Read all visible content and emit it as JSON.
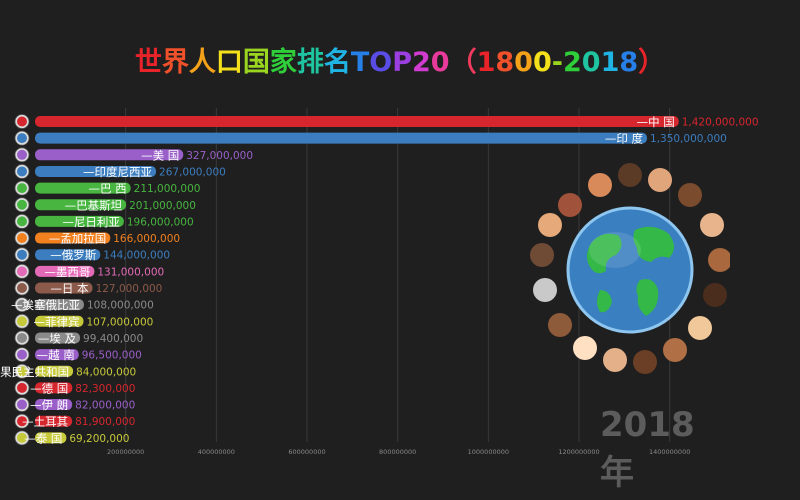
{
  "title": "世界人口国家排名TOP20（1800-2018）",
  "title_colors": [
    "#e8232a",
    "#f0502a",
    "#f5a21b",
    "#f5e11b",
    "#9ad51f",
    "#2fcf3a",
    "#1fc5a0",
    "#1fb4e3",
    "#2780e8",
    "#5a4de6",
    "#9b3fe0",
    "#d03bd0",
    "#e83a9a",
    "#ef3a5d",
    "#e8232a",
    "#f0502a",
    "#f5a21b",
    "#f5e11b",
    "#9ad51f",
    "#2fcf3a",
    "#1fc5a0",
    "#1fb4e3",
    "#2780e8"
  ],
  "year_label": "2018年",
  "chart_data": {
    "type": "bar",
    "orientation": "horizontal",
    "title": "世界人口国家排名TOP20（1800-2018）",
    "xlim": [
      0,
      1500000000
    ],
    "x_ticks": [
      200000000,
      400000000,
      600000000,
      800000000,
      1000000000,
      1200000000,
      1400000000
    ],
    "x_tick_labels": [
      "200000000",
      "400000000",
      "600000000",
      "800000000",
      "1000000000",
      "1200000000",
      "1400000000"
    ],
    "categories": [
      "中 国",
      "印 度",
      "美 国",
      "印度尼西亚",
      "巴 西",
      "巴基斯坦",
      "尼日利亚",
      "孟加拉国",
      "俄罗斯",
      "墨西哥",
      "日 本",
      "埃塞俄比亚",
      "菲律宾",
      "埃 及",
      "越 南",
      "刚果民主共和国",
      "德 国",
      "伊 朗",
      "土耳其",
      "泰 国"
    ],
    "values": [
      1420000000,
      1350000000,
      327000000,
      267000000,
      211000000,
      201000000,
      196000000,
      166000000,
      144000000,
      131000000,
      127000000,
      108000000,
      107000000,
      99400000,
      96500000,
      84000000,
      82300000,
      82000000,
      81900000,
      69200000
    ],
    "value_labels": [
      "1,420,000,000",
      "1,350,000,000",
      "327,000,000",
      "267,000,000",
      "211,000,000",
      "201,000,000",
      "196,000,000",
      "166,000,000",
      "144,000,000",
      "131,000,000",
      "127,000,000",
      "108,000,000",
      "107,000,000",
      "99,400,000",
      "96,500,000",
      "84,000,000",
      "82,300,000",
      "82,000,000",
      "81,900,000",
      "69,200,000"
    ],
    "colors": [
      "#d6262e",
      "#3b7dbf",
      "#9a5fc8",
      "#3b7dbf",
      "#47b53f",
      "#47b53f",
      "#47b53f",
      "#f2801f",
      "#3b7dbf",
      "#e46ab8",
      "#8c5a4a",
      "#8a8a8a",
      "#c6c93a",
      "#8a8a8a",
      "#9a5fc8",
      "#c6c93a",
      "#d6262e",
      "#9a5fc8",
      "#d6262e",
      "#c6c93a"
    ],
    "grid": true,
    "legend": "none"
  }
}
